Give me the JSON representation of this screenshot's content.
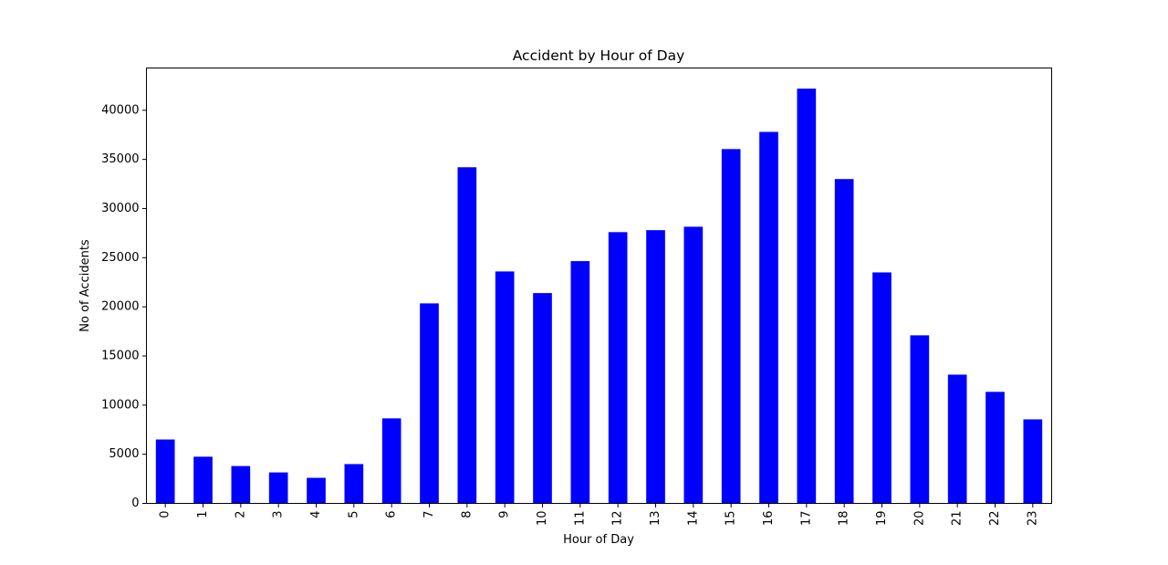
{
  "chart_data": {
    "type": "bar",
    "title": "Accident by Hour of Day",
    "xlabel": "Hour of Day",
    "ylabel": "No of Accidents",
    "categories": [
      "0",
      "1",
      "2",
      "3",
      "4",
      "5",
      "6",
      "7",
      "8",
      "9",
      "10",
      "11",
      "12",
      "13",
      "14",
      "15",
      "16",
      "17",
      "18",
      "19",
      "20",
      "21",
      "22",
      "23"
    ],
    "values": [
      6500,
      4750,
      3800,
      3150,
      2600,
      4000,
      8650,
      20350,
      34200,
      23600,
      21400,
      24650,
      27600,
      27800,
      28150,
      36050,
      37800,
      42200,
      33000,
      23500,
      17100,
      13100,
      11350,
      8550
    ],
    "ylim": [
      0,
      44300
    ],
    "yticks": [
      0,
      5000,
      10000,
      15000,
      20000,
      25000,
      30000,
      35000,
      40000
    ],
    "bar_color": "#0000ff",
    "grid": false,
    "legend": false
  }
}
